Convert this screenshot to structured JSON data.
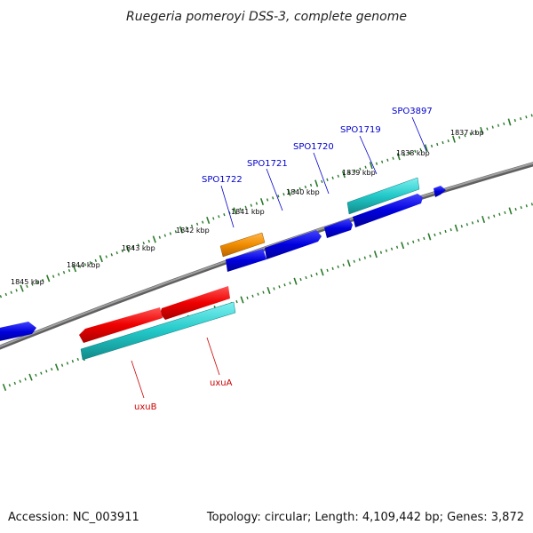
{
  "title": "Ruegeria pomeroyi DSS-3, complete genome",
  "footer": {
    "accession": "Accession: NC_003911",
    "summary": "Topology: circular; Length: 4,109,442 bp; Genes: 3,872"
  },
  "colors": {
    "backbone": "#8a8a8a",
    "tick": "#2a7a2a",
    "cds_forward": "#0000dd",
    "cds_reverse": "#dd0000",
    "cds_orange": "#f08c00",
    "cds_cyan": "#1cc4c4",
    "label_blue": "#0000cc",
    "label_red": "#cc0000"
  },
  "kbp_labels": [
    "1837 kbp",
    "1838 kbp",
    "1839 kbp",
    "1840 kbp",
    "1841 kbp",
    "1842 kbp",
    "1843 kbp",
    "1844 kbp",
    "1845 kbp"
  ],
  "gene_labels": [
    {
      "id": "spo3897",
      "text": "SPO3897",
      "color": "blue"
    },
    {
      "id": "spo1719",
      "text": "SPO1719",
      "color": "blue"
    },
    {
      "id": "spo1720",
      "text": "SPO1720",
      "color": "blue"
    },
    {
      "id": "spo1721",
      "text": "SPO1721",
      "color": "blue"
    },
    {
      "id": "spo1722",
      "text": "SPO1722",
      "color": "blue"
    },
    {
      "id": "uxua",
      "text": "uxuA",
      "color": "red"
    },
    {
      "id": "uxub",
      "text": "uxuB",
      "color": "red"
    }
  ]
}
